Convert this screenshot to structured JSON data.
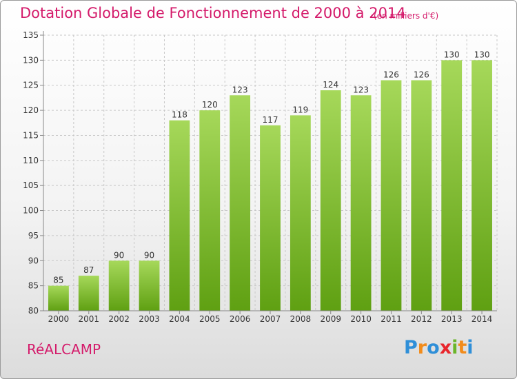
{
  "title": "Dotation Globale de Fonctionnement de 2000 à 2014",
  "unit_note": "(en milliers d'€)",
  "commune": "RéALCAMP",
  "logo": {
    "letters": [
      "P",
      "r",
      "o",
      "x",
      "i",
      "t",
      "i"
    ],
    "colors": [
      "#2f8fd8",
      "#f28c1c",
      "#2f8fd8",
      "#e8262d",
      "#6bb52a",
      "#f28c1c",
      "#2f8fd8"
    ]
  },
  "colors": {
    "accent": "#d41a6a",
    "bar_top": "#a6d85a",
    "bar_bottom": "#5fa012",
    "grid": "#c8c8c8"
  },
  "chart_data": {
    "type": "bar",
    "title": "Dotation Globale de Fonctionnement de 2000 à 2014",
    "xlabel": "",
    "ylabel": "",
    "ylim": [
      80,
      135
    ],
    "yticks": [
      80,
      85,
      90,
      95,
      100,
      105,
      110,
      115,
      120,
      125,
      130,
      135
    ],
    "categories": [
      "2000",
      "2001",
      "2002",
      "2003",
      "2004",
      "2005",
      "2006",
      "2007",
      "2008",
      "2009",
      "2010",
      "2011",
      "2012",
      "2013",
      "2014"
    ],
    "values": [
      85,
      87,
      90,
      90,
      118,
      120,
      123,
      117,
      119,
      124,
      123,
      126,
      126,
      130,
      130
    ],
    "grid": true
  }
}
